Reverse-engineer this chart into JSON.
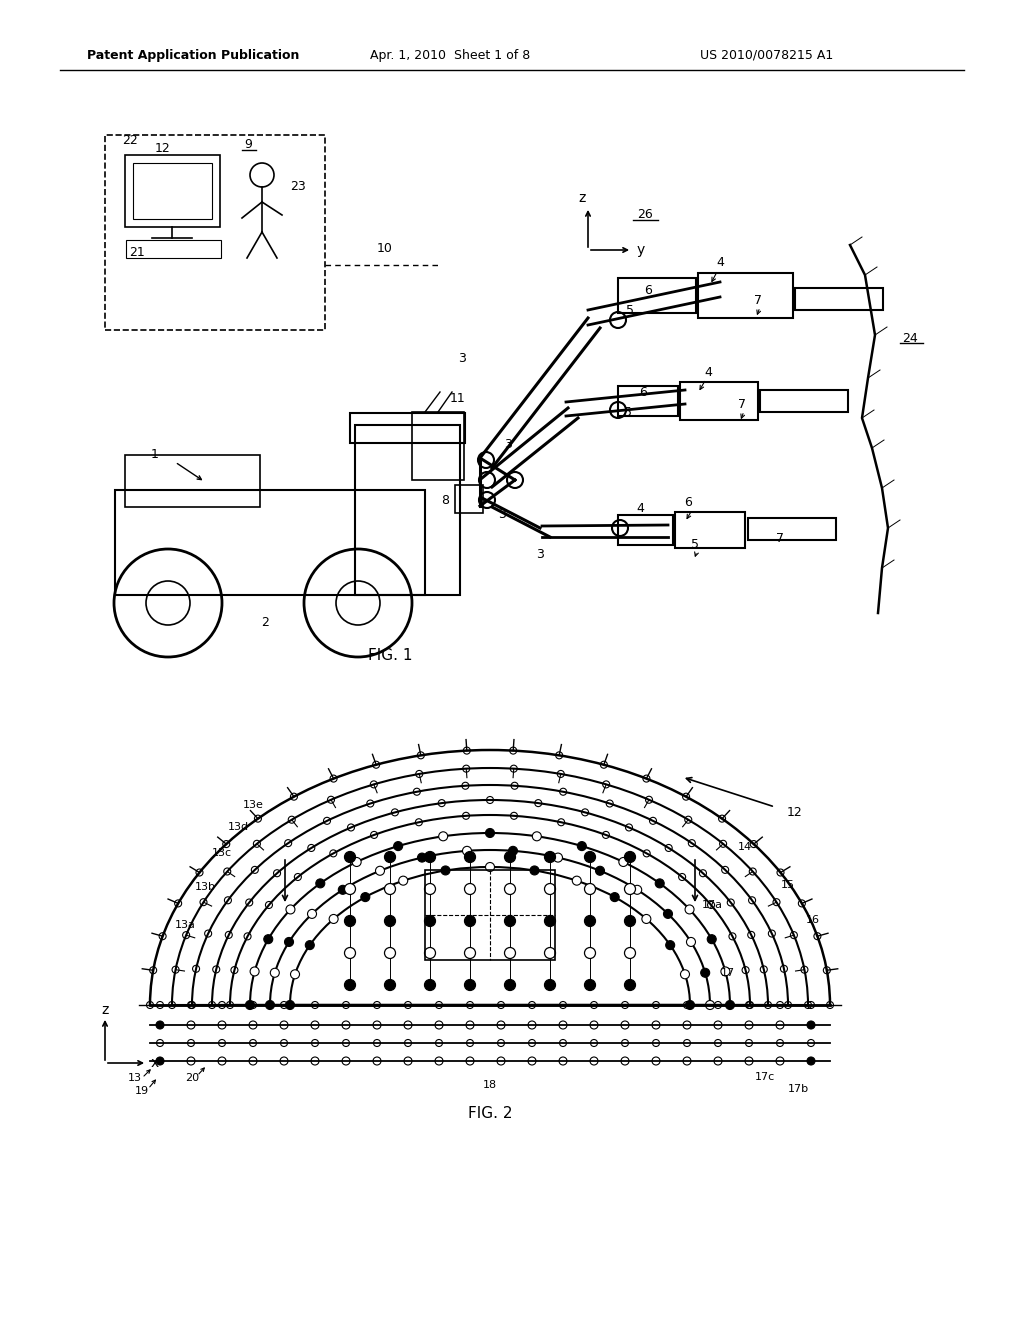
{
  "bg_color": "#ffffff",
  "header_left": "Patent Application Publication",
  "header_mid": "Apr. 1, 2010  Sheet 1 of 8",
  "header_right": "US 2010/0078215 A1",
  "fig1_label": "FIG. 1",
  "fig2_label": "FIG. 2"
}
